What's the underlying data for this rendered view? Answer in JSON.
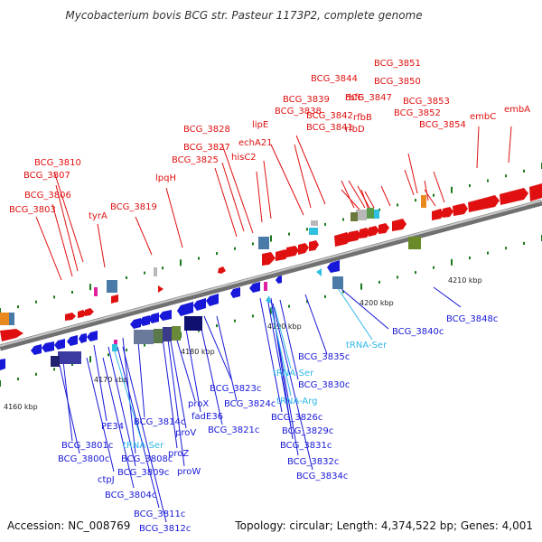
{
  "title": "Mycobacterium bovis BCG str. Pasteur 1173P2, complete genome",
  "footer": {
    "accession": "Accession: NC_008769",
    "summary": "Topology: circular; Length: 4,374,522 bp; Genes: 4,001"
  },
  "colors": {
    "forward": "#e01010",
    "reverse": "#1818d8",
    "rna": "#30b8e8",
    "backbone": "#888888",
    "tick": "#1a7a1a"
  },
  "kbp_ticks": [
    "4160 kbp",
    "4170 kbp",
    "4180 kbp",
    "4190 kbp",
    "4200 kbp",
    "4210 kbp"
  ],
  "forward_labels": [
    "BCG_3851",
    "BCG_3850",
    "BCG_3844",
    "BCG_3853",
    "rbfE",
    "BCG_3847",
    "embA",
    "BCG_3839",
    "BCG_3852",
    "embC",
    "BCG_3838",
    "BCG_3842",
    "rfbB",
    "BCG_3854",
    "lipE",
    "BCG_3841",
    "rfbD",
    "BCG_3828",
    "echA21",
    "BCG_3827",
    "hisC2",
    "BCG_3825",
    "lpqH",
    "BCG_3810",
    "BCG_3807",
    "BCG_3806",
    "tyrA",
    "BCG_3819",
    "BCG_3803"
  ],
  "reverse_labels": [
    "BCG_3848c",
    "BCG_3840c",
    "BCG_3835c",
    "BCG_3830c",
    "BCG_3823c",
    "BCG_3824c",
    "BCG_3826c",
    "BCG_3829c",
    "BCG_3831c",
    "BCG_3832c",
    "BCG_3834c",
    "BCG_3821c",
    "fadE36",
    "proX",
    "proV",
    "proZ",
    "proW",
    "BCG_3814c",
    "BCG_3808c",
    "BCG_3809c",
    "BCG_3801c",
    "BCG_3800c",
    "PE34",
    "ctpJ",
    "BCG_3804c",
    "BCG_3811c",
    "BCG_3812c"
  ],
  "rna_labels": [
    "tRNA-Ser",
    "tRNA-Ser",
    "tRNA-Arg",
    "tRNA-Ser"
  ]
}
